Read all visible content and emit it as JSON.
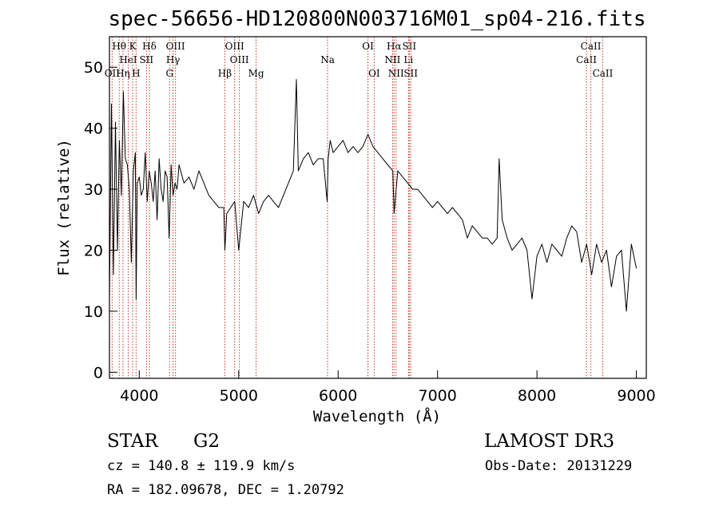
{
  "chart_data": {
    "type": "line",
    "title": "spec-56656-HD120800N003716M01_sp04-216.fits",
    "xlabel": "Wavelength (Å)",
    "ylabel": "Flux (relative)",
    "xlim": [
      3700,
      9100
    ],
    "ylim": [
      -1,
      55
    ],
    "x_ticks": [
      "4000",
      "5000",
      "6000",
      "7000",
      "8000",
      "9000"
    ],
    "y_ticks": [
      "0",
      "10",
      "20",
      "30",
      "40",
      "50"
    ],
    "x_tick_values": [
      4000,
      5000,
      6000,
      7000,
      8000,
      9000
    ],
    "y_tick_values": [
      0,
      10,
      20,
      30,
      40,
      50
    ],
    "series": [
      {
        "x": [
          3700,
          3720,
          3740,
          3760,
          3780,
          3800,
          3820,
          3840,
          3860,
          3880,
          3900,
          3920,
          3940,
          3960,
          3968,
          3980,
          4000,
          4020,
          4040,
          4060,
          4080,
          4100,
          4120,
          4140,
          4160,
          4180,
          4200,
          4220,
          4240,
          4260,
          4280,
          4300,
          4320,
          4340,
          4360,
          4380,
          4400,
          4450,
          4500,
          4550,
          4600,
          4650,
          4700,
          4750,
          4800,
          4850,
          4861,
          4880,
          4920,
          4960,
          5000,
          5050,
          5100,
          5150,
          5200,
          5250,
          5300,
          5350,
          5400,
          5450,
          5500,
          5550,
          5580,
          5600,
          5650,
          5700,
          5750,
          5800,
          5850,
          5890,
          5900,
          5920,
          5950,
          6000,
          6050,
          6100,
          6150,
          6200,
          6250,
          6300,
          6350,
          6400,
          6450,
          6500,
          6550,
          6563,
          6600,
          6650,
          6700,
          6750,
          6800,
          6850,
          6900,
          6950,
          7000,
          7050,
          7100,
          7150,
          7200,
          7250,
          7300,
          7350,
          7400,
          7450,
          7500,
          7550,
          7600,
          7620,
          7650,
          7700,
          7750,
          7800,
          7850,
          7900,
          7950,
          8000,
          8050,
          8100,
          8150,
          8200,
          8250,
          8300,
          8350,
          8400,
          8450,
          8500,
          8550,
          8600,
          8650,
          8700,
          8750,
          8800,
          8850,
          8900,
          8950,
          9000
        ],
        "y": [
          12,
          44,
          16,
          41,
          20,
          38,
          29,
          46,
          35,
          34,
          30,
          18,
          33,
          36,
          12,
          31,
          32,
          29,
          30,
          36,
          28,
          33,
          31,
          28,
          33,
          25,
          35,
          30,
          28,
          33,
          32,
          22,
          34,
          29,
          31,
          30,
          34,
          31,
          32,
          30,
          33,
          31,
          29,
          28,
          27,
          27,
          20,
          26,
          27,
          28,
          20,
          28,
          27,
          29,
          26,
          28,
          29,
          28,
          27,
          29,
          31,
          33,
          48,
          33,
          35,
          36,
          34,
          35,
          35,
          28,
          35,
          38,
          36,
          37,
          38,
          36,
          37,
          36,
          37,
          39,
          37,
          36,
          35,
          34,
          33,
          26,
          33,
          32,
          31,
          30,
          30,
          29,
          28,
          27,
          28,
          27,
          26,
          27,
          26,
          25,
          22,
          24,
          23,
          22,
          22,
          21,
          22,
          35,
          25,
          22,
          20,
          21,
          22,
          20,
          12,
          19,
          21,
          18,
          21,
          20,
          19,
          22,
          24,
          23,
          18,
          21,
          16,
          21,
          18,
          20,
          14,
          19,
          20,
          10,
          21,
          17
        ]
      }
    ],
    "line_markers": [
      {
        "label": "Hθ",
        "x": 3798,
        "row": 0
      },
      {
        "label": "OII",
        "x": 3727,
        "row": 2
      },
      {
        "label": "Hη",
        "x": 3836,
        "row": 2
      },
      {
        "label": "HeI",
        "x": 3889,
        "row": 1
      },
      {
        "label": "K",
        "x": 3934,
        "row": 0
      },
      {
        "label": "H",
        "x": 3968,
        "row": 2
      },
      {
        "label": "SII",
        "x": 4072,
        "row": 1
      },
      {
        "label": "Hδ",
        "x": 4102,
        "row": 0
      },
      {
        "label": "OIII",
        "x": 4364,
        "row": 0
      },
      {
        "label": "Hγ",
        "x": 4340,
        "row": 1
      },
      {
        "label": "G",
        "x": 4305,
        "row": 2
      },
      {
        "label": "OIII",
        "x": 4959,
        "row": 0
      },
      {
        "label": "OIII",
        "x": 5007,
        "row": 1
      },
      {
        "label": "Hβ",
        "x": 4861,
        "row": 2
      },
      {
        "label": "Mg",
        "x": 5175,
        "row": 2
      },
      {
        "label": "Na",
        "x": 5894,
        "row": 1
      },
      {
        "label": "OI",
        "x": 6300,
        "row": 0
      },
      {
        "label": "OI",
        "x": 6363,
        "row": 2
      },
      {
        "label": "Hα",
        "x": 6563,
        "row": 0
      },
      {
        "label": "NII",
        "x": 6548,
        "row": 1
      },
      {
        "label": "NII",
        "x": 6583,
        "row": 2
      },
      {
        "label": "SII",
        "x": 6716,
        "row": 0
      },
      {
        "label": "Li",
        "x": 6708,
        "row": 1
      },
      {
        "label": "SII",
        "x": 6731,
        "row": 2
      },
      {
        "label": "CaII",
        "x": 8498,
        "row": 1
      },
      {
        "label": "CaII",
        "x": 8542,
        "row": 0
      },
      {
        "label": "CaII",
        "x": 8662,
        "row": 2
      }
    ],
    "line_color": "#000000",
    "marker_color": "#c0392b"
  },
  "footer": {
    "object_type": "STAR",
    "subclass": "G2",
    "survey": "LAMOST  DR3",
    "cz": "cz = 140.8 ± 119.9 km/s",
    "obs_date": "Obs-Date: 20131229",
    "radec": "RA = 182.09678, DEC =    1.20792"
  }
}
